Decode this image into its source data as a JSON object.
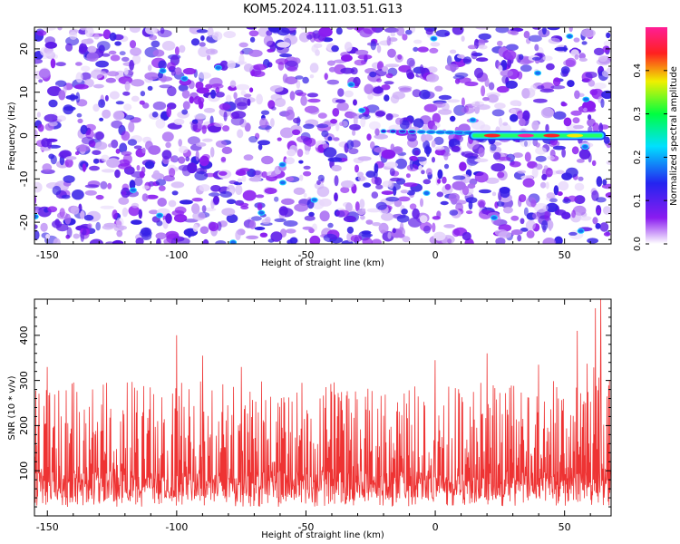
{
  "title": "KOM5.2024.111.03.51.G13",
  "chart_data": [
    {
      "type": "heatmap",
      "xlabel": "Height of straight line (km)",
      "ylabel": "Frequency (Hz)",
      "xlim": [
        -155,
        68
      ],
      "ylim": [
        -25,
        25
      ],
      "xticks": [
        -150,
        -100,
        -50,
        0,
        50
      ],
      "yticks": [
        -20,
        -10,
        0,
        10,
        20
      ],
      "colorbar": {
        "label": "Normalized spectral amplitude",
        "range": [
          0,
          0.5
        ],
        "ticks": [
          0.0,
          0.1,
          0.2,
          0.3,
          0.4
        ],
        "colormap": [
          "#ffffff",
          "#8a1cf0",
          "#2424f0",
          "#00e0ff",
          "#00ff40",
          "#f0f000",
          "#ff2020",
          "#ff1e96"
        ]
      },
      "features": [
        {
          "kind": "carrier",
          "x_start": 13,
          "x_end": 66,
          "y": 0,
          "peak": 0.45
        },
        {
          "kind": "fade_in",
          "x_start": -20,
          "x_end": 13,
          "y": 1
        }
      ]
    },
    {
      "type": "line",
      "xlabel": "Height of straight line (km)",
      "ylabel": "SNR (10 * v/v)",
      "xlim": [
        -155,
        68
      ],
      "ylim": [
        0,
        480
      ],
      "xticks": [
        -150,
        -100,
        -50,
        0,
        50
      ],
      "yticks": [
        100,
        200,
        300,
        400
      ],
      "color": "#ee3333",
      "baseline_min": 20,
      "typical_range": [
        40,
        300
      ],
      "peaks": [
        [
          -150,
          330
        ],
        [
          -100,
          400
        ],
        [
          -90,
          355
        ],
        [
          -75,
          330
        ],
        [
          0,
          345
        ],
        [
          20,
          360
        ],
        [
          40,
          335
        ],
        [
          55,
          410
        ],
        [
          62,
          460
        ],
        [
          64,
          480
        ]
      ]
    }
  ]
}
